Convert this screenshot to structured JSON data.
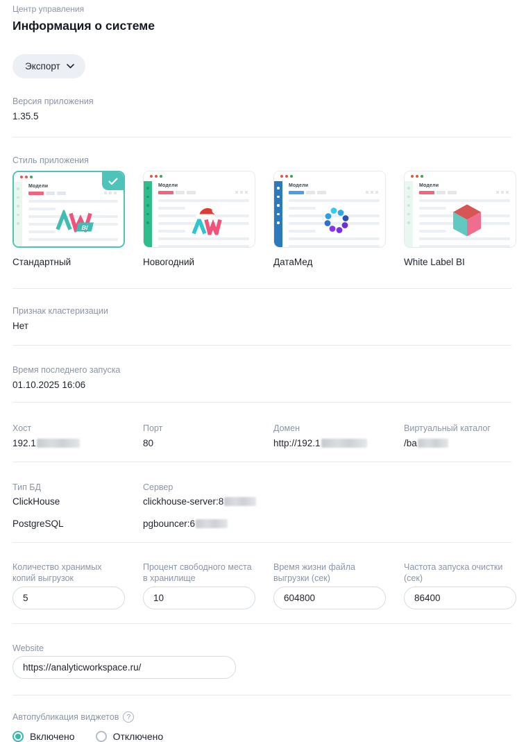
{
  "header": {
    "breadcrumb": "Центр управления",
    "title": "Информация о системе",
    "export_button": "Экспорт"
  },
  "version": {
    "label": "Версия приложения",
    "value": "1.35.5"
  },
  "app_style": {
    "label": "Стиль приложения",
    "mockup_nav_label": "Модели",
    "cards": [
      {
        "name": "Стандартный",
        "selected": true,
        "logo": "aw-bi-logo",
        "sidebar_color": "#EAF7F0",
        "sidebar_dot_color": "#C9E8D9",
        "accent_color": "#F2647C"
      },
      {
        "name": "Новогодний",
        "selected": false,
        "logo": "aw-bi-santa-logo",
        "sidebar_color": "#2EBE8C",
        "sidebar_dot_color": "#1E9E70",
        "accent_color": "#F2647C"
      },
      {
        "name": "ДатаМед",
        "selected": false,
        "logo": "datamed-dots-logo",
        "sidebar_color": "#2B7ABE",
        "sidebar_dot_color": "#FFFFFF",
        "accent_color": "#4A9FE8"
      },
      {
        "name": "White Label BI",
        "selected": false,
        "logo": "cube-logo",
        "sidebar_color": "#EAF7F0",
        "sidebar_dot_color": "#C9E8D9",
        "accent_color": "#F2647C"
      }
    ]
  },
  "clustering": {
    "label": "Признак кластеризации",
    "value": "Нет"
  },
  "last_launch": {
    "label": "Время последнего запуска",
    "value": "01.10.2025 16:06"
  },
  "network": {
    "columns": [
      {
        "label": "Хост",
        "value": "192.1",
        "redacted": true
      },
      {
        "label": "Порт",
        "value": "80",
        "redacted": false
      },
      {
        "label": "Домен",
        "value": "http://192.1",
        "redacted": true
      },
      {
        "label": "Виртуальный каталог",
        "value": "/ba",
        "redacted": true
      }
    ]
  },
  "database": {
    "type_label": "Тип БД",
    "server_label": "Сервер",
    "rows": [
      {
        "type": "ClickHouse",
        "server": "clickhouse-server:8",
        "redacted": true
      },
      {
        "type": "PostgreSQL",
        "server": "pgbouncer:6",
        "redacted": true
      }
    ]
  },
  "storage_settings": {
    "fields": [
      {
        "label": "Количество хранимых копий выгрузок",
        "value": "5"
      },
      {
        "label": "Процент свободного места в хранилище",
        "value": "10"
      },
      {
        "label": "Время жизни файла выгрузки (сек)",
        "value": "604800"
      },
      {
        "label": "Частота запуска очистки (сек)",
        "value": "86400"
      }
    ]
  },
  "website": {
    "label": "Website",
    "value": "https://analyticworkspace.ru/"
  },
  "autopublish": {
    "label": "Автопубликация виджетов",
    "help_icon": "?",
    "options": [
      {
        "label": "Включено",
        "selected": true
      },
      {
        "label": "Отключено",
        "selected": false
      }
    ]
  },
  "colors": {
    "accent_teal": "#4EC3B9",
    "label_gray": "#8A94A4",
    "text_dark": "#1E222B",
    "divider": "#E7EAEE",
    "pink": "#F2647C"
  }
}
